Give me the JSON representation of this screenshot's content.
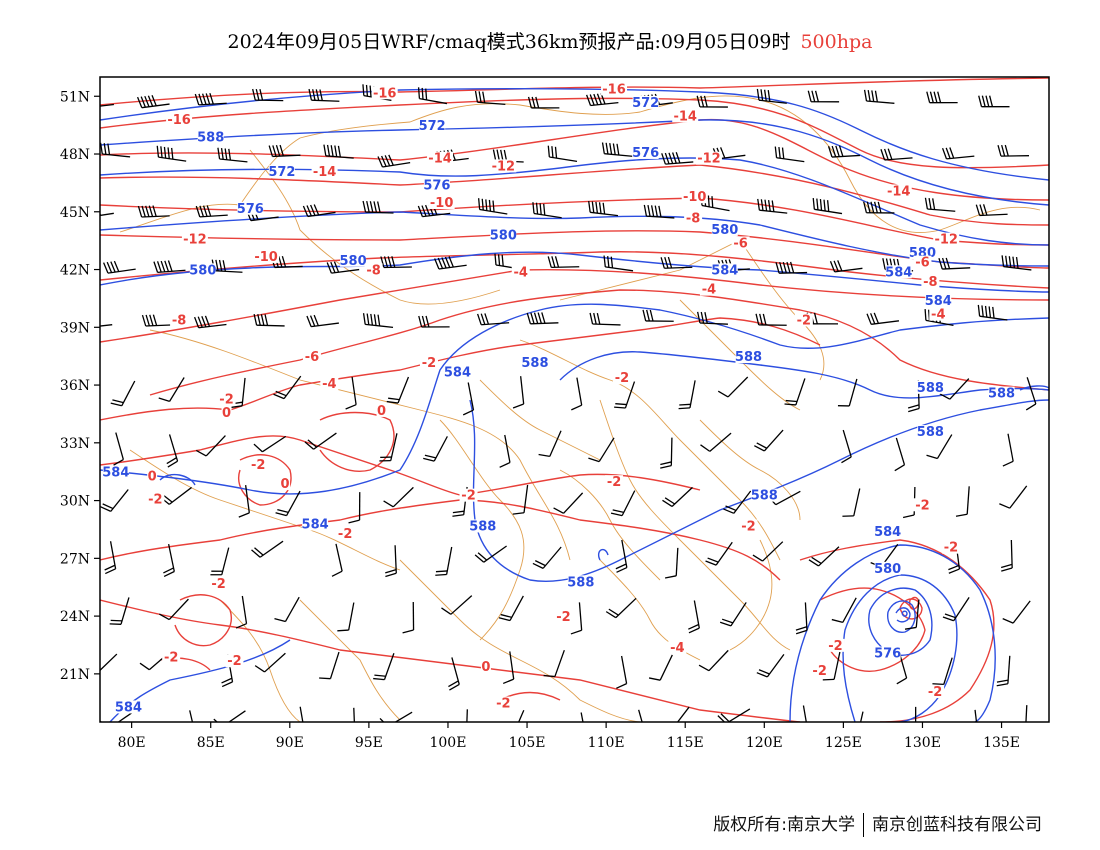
{
  "title": {
    "main": "2024年09月05日WRF/cmaq模式36km预报产品:09月05日09时",
    "level": "500hpa"
  },
  "axes": {
    "lon_labels": [
      "80E",
      "85E",
      "90E",
      "95E",
      "100E",
      "105E",
      "110E",
      "115E",
      "120E",
      "125E",
      "130E",
      "135E"
    ],
    "lat_labels": [
      "51N",
      "48N",
      "45N",
      "42N",
      "39N",
      "36N",
      "33N",
      "30N",
      "27N",
      "24N",
      "21N"
    ],
    "lon_range": [
      78,
      138
    ],
    "lat_range": [
      18.5,
      52
    ]
  },
  "colors": {
    "height_contour": "#2d4fe0",
    "temperature_contour": "#e8403a",
    "boundary": "#e0a050",
    "wind_barb": "#000000"
  },
  "height_labels": [
    {
      "text": "588",
      "lon": 85,
      "lat": 48.7
    },
    {
      "text": "572",
      "lon": 89.5,
      "lat": 46.9
    },
    {
      "text": "572",
      "lon": 99,
      "lat": 49.3
    },
    {
      "text": "572",
      "lon": 112.5,
      "lat": 50.5
    },
    {
      "text": "576",
      "lon": 87.5,
      "lat": 45
    },
    {
      "text": "576",
      "lon": 99.3,
      "lat": 46.2
    },
    {
      "text": "576",
      "lon": 112.5,
      "lat": 47.9
    },
    {
      "text": "580",
      "lon": 84.5,
      "lat": 41.8
    },
    {
      "text": "580",
      "lon": 94,
      "lat": 42.3
    },
    {
      "text": "580",
      "lon": 103.5,
      "lat": 43.6
    },
    {
      "text": "580",
      "lon": 117.5,
      "lat": 43.9
    },
    {
      "text": "580",
      "lon": 130,
      "lat": 42.7
    },
    {
      "text": "584",
      "lon": 117.5,
      "lat": 41.8
    },
    {
      "text": "584",
      "lon": 128.5,
      "lat": 41.7
    },
    {
      "text": "584",
      "lon": 131,
      "lat": 40.2
    },
    {
      "text": "584",
      "lon": 100.6,
      "lat": 36.5
    },
    {
      "text": "584",
      "lon": 79,
      "lat": 31.3
    },
    {
      "text": "584",
      "lon": 91.6,
      "lat": 28.6
    },
    {
      "text": "584",
      "lon": 79.8,
      "lat": 19.1
    },
    {
      "text": "584",
      "lon": 127.8,
      "lat": 28.2
    },
    {
      "text": "588",
      "lon": 105.5,
      "lat": 37
    },
    {
      "text": "588",
      "lon": 119,
      "lat": 37.3
    },
    {
      "text": "588",
      "lon": 130.5,
      "lat": 35.7
    },
    {
      "text": "588",
      "lon": 135,
      "lat": 35.4
    },
    {
      "text": "588",
      "lon": 130.5,
      "lat": 33.4
    },
    {
      "text": "588",
      "lon": 120,
      "lat": 30.1
    },
    {
      "text": "588",
      "lon": 102.2,
      "lat": 28.5
    },
    {
      "text": "588",
      "lon": 108.4,
      "lat": 25.6
    },
    {
      "text": "580",
      "lon": 127.8,
      "lat": 26.3
    },
    {
      "text": "576",
      "lon": 127.8,
      "lat": 21.9
    }
  ],
  "temperature_labels": [
    {
      "text": "-16",
      "lon": 83,
      "lat": 49.6
    },
    {
      "text": "-16",
      "lon": 96,
      "lat": 51
    },
    {
      "text": "-16",
      "lon": 110.5,
      "lat": 51.2
    },
    {
      "text": "-14",
      "lon": 92.2,
      "lat": 46.9
    },
    {
      "text": "-14",
      "lon": 99.5,
      "lat": 47.6
    },
    {
      "text": "-14",
      "lon": 115,
      "lat": 49.8
    },
    {
      "text": "-14",
      "lon": 128.5,
      "lat": 45.9
    },
    {
      "text": "-12",
      "lon": 84,
      "lat": 43.4
    },
    {
      "text": "-12",
      "lon": 103.5,
      "lat": 47.2
    },
    {
      "text": "-12",
      "lon": 116.5,
      "lat": 47.6
    },
    {
      "text": "-12",
      "lon": 131.5,
      "lat": 43.4
    },
    {
      "text": "-10",
      "lon": 99.6,
      "lat": 45.3
    },
    {
      "text": "-10",
      "lon": 115.6,
      "lat": 45.6
    },
    {
      "text": "-10",
      "lon": 88.5,
      "lat": 42.5
    },
    {
      "text": "-8",
      "lon": 95.3,
      "lat": 41.8
    },
    {
      "text": "-8",
      "lon": 115.5,
      "lat": 44.5
    },
    {
      "text": "-8",
      "lon": 83,
      "lat": 39.2
    },
    {
      "text": "-8",
      "lon": 130.5,
      "lat": 41.2
    },
    {
      "text": "-6",
      "lon": 118.5,
      "lat": 43.2
    },
    {
      "text": "-6",
      "lon": 130,
      "lat": 42.2
    },
    {
      "text": "-6",
      "lon": 91.4,
      "lat": 37.3
    },
    {
      "text": "-4",
      "lon": 104.6,
      "lat": 41.7
    },
    {
      "text": "-4",
      "lon": 116.5,
      "lat": 40.8
    },
    {
      "text": "-4",
      "lon": 92.5,
      "lat": 35.9
    },
    {
      "text": "-4",
      "lon": 131,
      "lat": 39.5
    },
    {
      "text": "-2",
      "lon": 122.5,
      "lat": 39.2
    },
    {
      "text": "-2",
      "lon": 98.8,
      "lat": 37
    },
    {
      "text": "-2",
      "lon": 111,
      "lat": 36.2
    },
    {
      "text": "-2",
      "lon": 86,
      "lat": 35.1
    },
    {
      "text": "-2",
      "lon": 88,
      "lat": 31.7
    },
    {
      "text": "-2",
      "lon": 81.5,
      "lat": 29.9
    },
    {
      "text": "-2",
      "lon": 101.3,
      "lat": 30.1
    },
    {
      "text": "-2",
      "lon": 110.5,
      "lat": 30.8
    },
    {
      "text": "-2",
      "lon": 93.5,
      "lat": 28.1
    },
    {
      "text": "-2",
      "lon": 119,
      "lat": 28.5
    },
    {
      "text": "-2",
      "lon": 130,
      "lat": 29.6
    },
    {
      "text": "-2",
      "lon": 131.8,
      "lat": 27.4
    },
    {
      "text": "-2",
      "lon": 107.3,
      "lat": 23.8
    },
    {
      "text": "-2",
      "lon": 85.5,
      "lat": 25.5
    },
    {
      "text": "-2",
      "lon": 82.5,
      "lat": 21.7
    },
    {
      "text": "-2",
      "lon": 86.5,
      "lat": 21.5
    },
    {
      "text": "-2",
      "lon": 124.5,
      "lat": 22.3
    },
    {
      "text": "-2",
      "lon": 123.5,
      "lat": 21
    },
    {
      "text": "-2",
      "lon": 103.5,
      "lat": 19.3
    },
    {
      "text": "-2",
      "lon": 130.8,
      "lat": 19.9
    },
    {
      "text": "-4",
      "lon": 114.5,
      "lat": 22.2
    },
    {
      "text": "0",
      "lon": 86,
      "lat": 34.4
    },
    {
      "text": "0",
      "lon": 95.8,
      "lat": 34.5
    },
    {
      "text": "0",
      "lon": 81.3,
      "lat": 31.1
    },
    {
      "text": "0",
      "lon": 89.7,
      "lat": 30.7
    },
    {
      "text": "0",
      "lon": 102.4,
      "lat": 21.2
    }
  ],
  "footer": {
    "copyright": "版权所有:南京大学",
    "company": "南京创蓝科技有限公司"
  }
}
